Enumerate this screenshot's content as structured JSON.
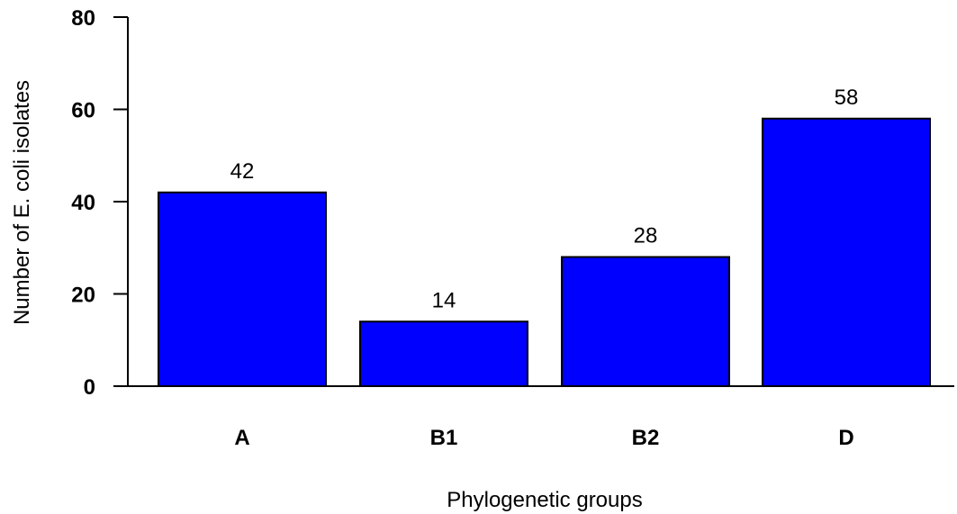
{
  "chart_data": {
    "type": "bar",
    "categories": [
      "A",
      "B1",
      "B2",
      "D"
    ],
    "values": [
      42,
      14,
      28,
      58
    ],
    "data_labels": [
      "42",
      "14",
      "28",
      "58"
    ],
    "xlabel": "Phylogenetic groups",
    "ylabel": "Number of E. coli isolates",
    "ylim": [
      0,
      80
    ],
    "yticks": [
      0,
      20,
      40,
      60,
      80
    ],
    "ytick_labels": [
      "0",
      "20",
      "40",
      "60",
      "80"
    ],
    "grid": false,
    "colors": {
      "bar": "#0000FF",
      "bar_edge": "#000000"
    }
  }
}
